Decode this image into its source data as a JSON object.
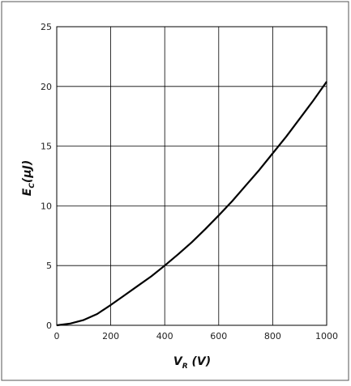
{
  "chart_data": {
    "type": "line",
    "title": "",
    "xlabel": {
      "main": "V",
      "sub": "R",
      "unit": " (V)"
    },
    "ylabel": {
      "main": "E",
      "sub": "C",
      "unit": "(μJ)"
    },
    "xlim": [
      0,
      1000
    ],
    "ylim": [
      0,
      25
    ],
    "x_ticks": [
      0,
      200,
      400,
      600,
      800,
      1000
    ],
    "y_ticks": [
      0,
      5,
      10,
      15,
      20,
      25
    ],
    "grid": true,
    "legend": "none",
    "series": [
      {
        "color": "#000000",
        "x": [
          0,
          50,
          100,
          150,
          200,
          250,
          300,
          350,
          400,
          450,
          500,
          550,
          600,
          650,
          700,
          750,
          800,
          850,
          900,
          950,
          1000
        ],
        "y": [
          0,
          0.15,
          0.45,
          0.95,
          1.7,
          2.5,
          3.3,
          4.1,
          5.0,
          5.95,
          6.95,
          8.05,
          9.2,
          10.4,
          11.7,
          13.0,
          14.4,
          15.8,
          17.3,
          18.8,
          20.4
        ]
      }
    ]
  }
}
